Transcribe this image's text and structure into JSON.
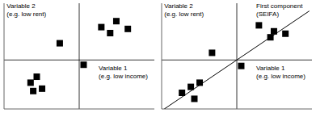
{
  "chart_data": [
    {
      "type": "scatter",
      "xlabel": "Variable 1\n(e.g. low income)",
      "ylabel": "Variable 2\n(e.g. low rent)",
      "xlim": [
        -0.85,
        0.85
      ],
      "ylim": [
        -0.82,
        0.95
      ],
      "tick_labels": false,
      "grid": false,
      "series": [
        {
          "type": "scatter",
          "marker": "square",
          "color": "#000000",
          "x": [
            0.25,
            0.35,
            0.42,
            0.55,
            -0.22,
            0.05,
            -0.55,
            -0.48,
            -0.52,
            -0.42
          ],
          "values": [
            0.55,
            0.45,
            0.65,
            0.52,
            0.28,
            -0.08,
            -0.38,
            -0.28,
            -0.52,
            -0.48
          ]
        }
      ]
    },
    {
      "type": "scatter",
      "xlabel": "Variable 1\n(e.g. low income)",
      "ylabel": "Variable 2\n(e.g. low rent)",
      "annotations": [
        "First component\n(SEIFA)"
      ],
      "xlim": [
        -0.85,
        0.85
      ],
      "ylim": [
        -0.82,
        0.95
      ],
      "tick_labels": false,
      "grid": false,
      "series": [
        {
          "type": "scatter",
          "marker": "square",
          "color": "#000000",
          "x": [
            0.25,
            0.42,
            0.38,
            0.55,
            -0.28,
            0.05,
            -0.62,
            -0.52,
            -0.48,
            -0.42
          ],
          "values": [
            0.58,
            0.48,
            0.38,
            0.44,
            0.12,
            -0.1,
            -0.55,
            -0.45,
            -0.65,
            -0.38
          ]
        },
        {
          "type": "line",
          "color": "#000000",
          "x": [
            -0.82,
            0.82
          ],
          "values": [
            -0.82,
            0.82
          ]
        }
      ]
    }
  ]
}
